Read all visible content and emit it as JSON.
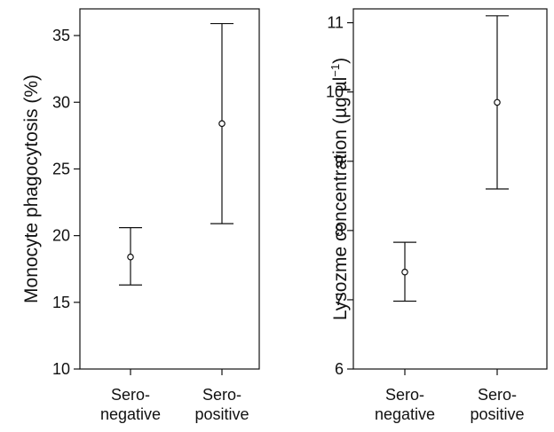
{
  "chart_data": [
    {
      "type": "scatter",
      "chart_kind": "point estimate with error bars",
      "categories": [
        "Sero-negative",
        "Sero-positive"
      ],
      "category_label_lines": [
        [
          "Sero-",
          "negative"
        ],
        [
          "Sero-",
          "positive"
        ]
      ],
      "ylabel": "Monocyte phagocytosis (%)",
      "ylim": [
        10,
        37
      ],
      "yticks": [
        "10",
        "15",
        "20",
        "25",
        "30",
        "35"
      ],
      "points": [
        {
          "category": "Sero-negative",
          "y": 18.4,
          "low": 16.3,
          "high": 20.6
        },
        {
          "category": "Sero-positive",
          "y": 28.4,
          "low": 20.9,
          "high": 35.9
        }
      ],
      "grid": false
    },
    {
      "type": "scatter",
      "chart_kind": "point estimate with error bars",
      "categories": [
        "Sero-negative",
        "Sero-positive"
      ],
      "category_label_lines": [
        [
          "Sero-",
          "negative"
        ],
        [
          "Sero-",
          "positive"
        ]
      ],
      "ylabel": "Lysozme concentration (µg µl",
      "ylabel_superscript": "−1",
      "ylabel_close": ")",
      "ylim": [
        6,
        11.2
      ],
      "yticks": [
        "6",
        "7",
        "8",
        "9",
        "10",
        "11"
      ],
      "points": [
        {
          "category": "Sero-negative",
          "y": 7.4,
          "low": 6.98,
          "high": 7.83
        },
        {
          "category": "Sero-positive",
          "y": 9.85,
          "low": 8.6,
          "high": 11.1
        }
      ],
      "grid": false
    }
  ],
  "colors": {
    "ink": "#111111",
    "background": "#ffffff"
  }
}
